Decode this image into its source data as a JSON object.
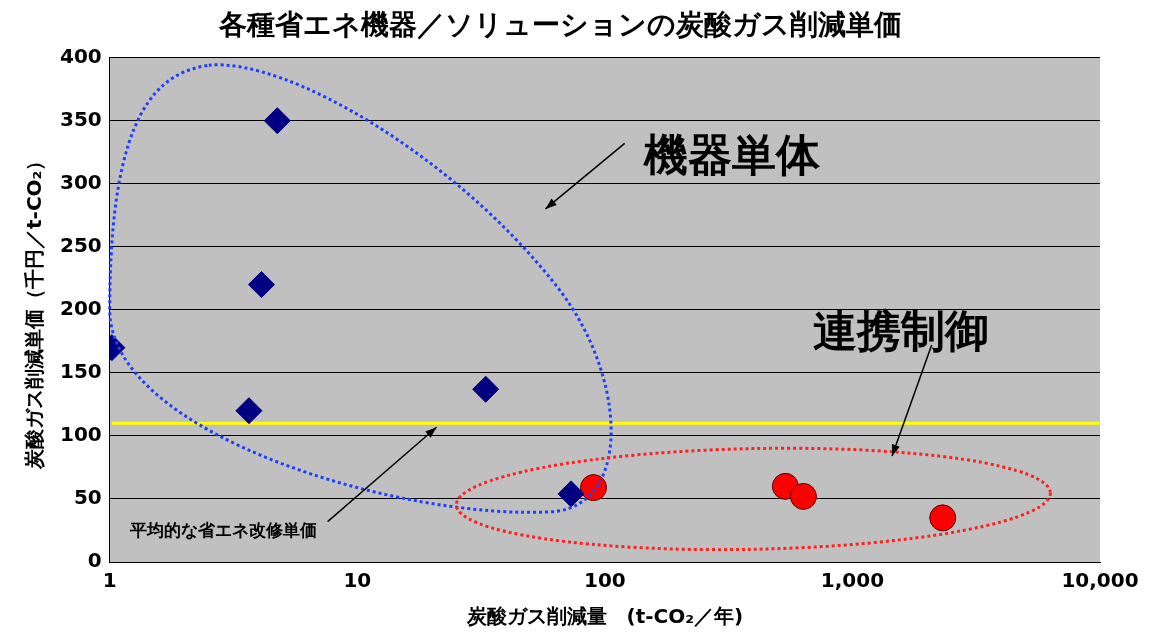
{
  "chart_data": {
    "type": "scatter",
    "title": "各種省エネ機器／ソリューションの炭酸ガス削減単価",
    "xlabel": "炭酸ガス削減量　(t-CO₂／年)",
    "ylabel": "炭酸ガス削減単価（千円／t-CO₂）",
    "log": "x",
    "xlim": [
      1,
      10000
    ],
    "xticks": [
      1,
      10,
      100,
      {
        "value": 1000,
        "label": "1,000"
      },
      {
        "value": 10000,
        "label": "10,000"
      }
    ],
    "ylim": [
      0,
      400
    ],
    "yticks": [
      0,
      50,
      100,
      150,
      200,
      250,
      300,
      350,
      400
    ],
    "grid": "y",
    "legend": false,
    "series": [
      {
        "color": "#000080",
        "marker": "diamond",
        "x": [
          1.02,
          4.75,
          4.1,
          3.65,
          33,
          73
        ],
        "values": [
          170,
          350,
          220,
          120,
          137,
          54
        ]
      },
      {
        "color": "#ff0000",
        "marker": "circle",
        "x": [
          90,
          536,
          634,
          2316
        ],
        "values": [
          59,
          60,
          52,
          35
        ]
      }
    ],
    "ref_lines": [
      {
        "axis": "y",
        "value": 110,
        "label": "平均的な省エネ改修単価",
        "color": "#ffff00"
      }
    ],
    "annotations": [
      "機器単体",
      "連携制御"
    ]
  }
}
